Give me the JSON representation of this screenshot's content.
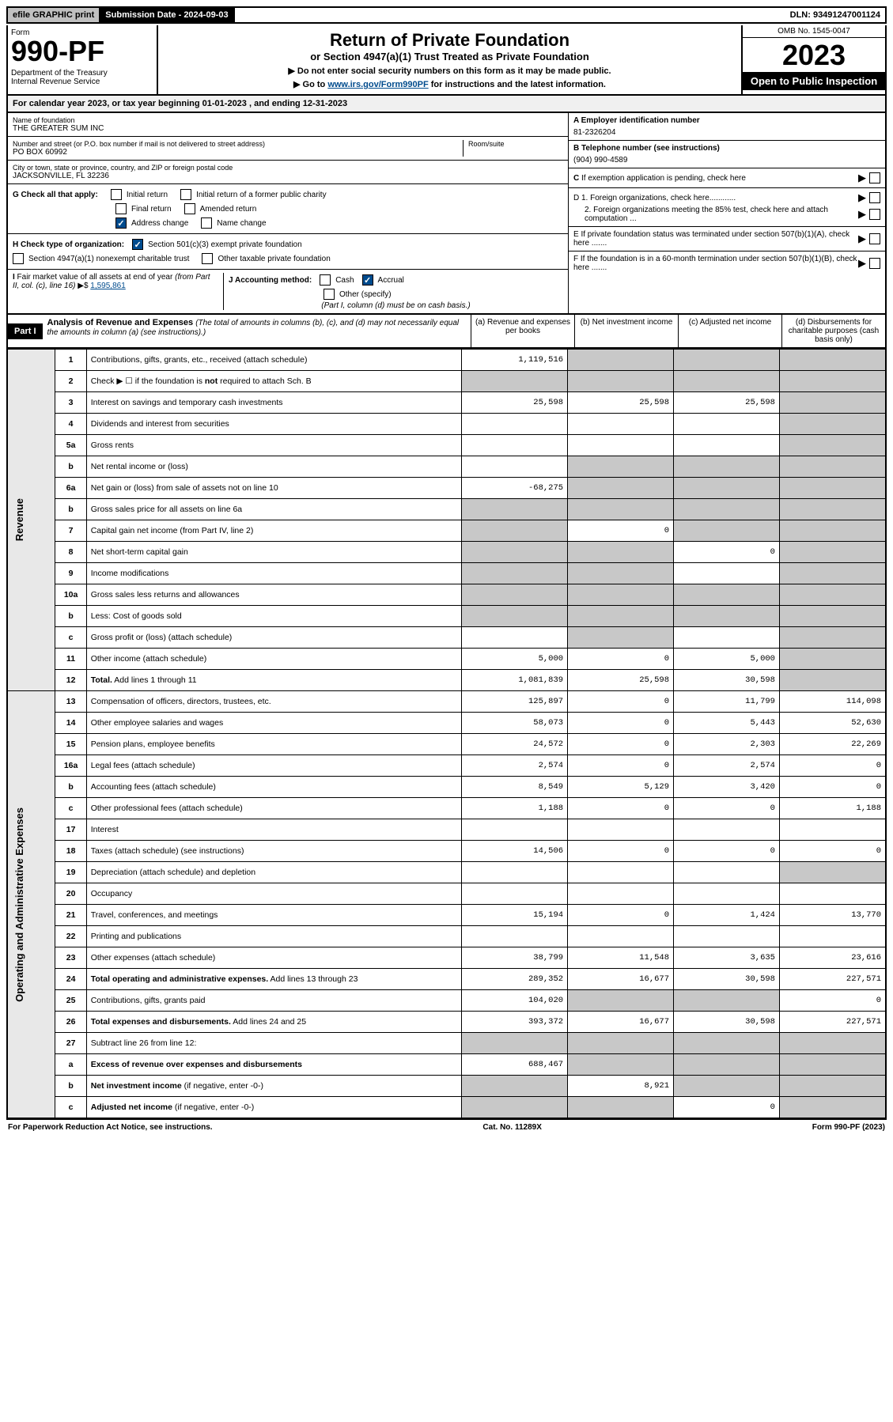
{
  "topbar": {
    "efile": "efile GRAPHIC print",
    "subdate_label": "Submission Date - 2024-09-03",
    "dln": "DLN: 93491247001124"
  },
  "header": {
    "form_label": "Form",
    "form_number": "990-PF",
    "dept": "Department of the Treasury\nInternal Revenue Service",
    "title": "Return of Private Foundation",
    "subtitle": "or Section 4947(a)(1) Trust Treated as Private Foundation",
    "note1": "▶ Do not enter social security numbers on this form as it may be made public.",
    "note2_pre": "▶ Go to ",
    "note2_link": "www.irs.gov/Form990PF",
    "note2_post": " for instructions and the latest information.",
    "omb": "OMB No. 1545-0047",
    "year": "2023",
    "inspect": "Open to Public Inspection"
  },
  "calyear": "For calendar year 2023, or tax year beginning 01-01-2023            , and ending 12-31-2023",
  "entity": {
    "name_lbl": "Name of foundation",
    "name": "THE GREATER SUM INC",
    "addr_lbl": "Number and street (or P.O. box number if mail is not delivered to street address)",
    "addr": "PO BOX 60992",
    "room_lbl": "Room/suite",
    "city_lbl": "City or town, state or province, country, and ZIP or foreign postal code",
    "city": "JACKSONVILLE, FL  32236",
    "a_lbl": "A Employer identification number",
    "a_val": "81-2326204",
    "b_lbl": "B Telephone number (see instructions)",
    "b_val": "(904) 990-4589",
    "c_lbl": "C If exemption application is pending, check here",
    "d1": "D 1. Foreign organizations, check here............",
    "d2": "2. Foreign organizations meeting the 85% test, check here and attach computation ...",
    "e_lbl": "E  If private foundation status was terminated under section 507(b)(1)(A), check here .......",
    "f_lbl": "F  If the foundation is in a 60-month termination under section 507(b)(1)(B), check here .......",
    "g_lbl": "G Check all that apply:",
    "g_opts": [
      "Initial return",
      "Initial return of a former public charity",
      "Final return",
      "Amended return",
      "Address change",
      "Name change"
    ],
    "h_lbl": "H Check type of organization:",
    "h_opts": [
      "Section 501(c)(3) exempt private foundation",
      "Section 4947(a)(1) nonexempt charitable trust",
      "Other taxable private foundation"
    ],
    "i_lbl": "I Fair market value of all assets at end of year (from Part II, col. (c), line 16) ▶$ ",
    "i_val": "1,595,861",
    "j_lbl": "J Accounting method:",
    "j_opts": [
      "Cash",
      "Accrual",
      "Other (specify)"
    ],
    "j_note": "(Part I, column (d) must be on cash basis.)"
  },
  "part1": {
    "label": "Part I",
    "title": "Analysis of Revenue and Expenses",
    "title_note": "(The total of amounts in columns (b), (c), and (d) may not necessarily equal the amounts in column (a) (see instructions).)",
    "col_a": "(a)  Revenue and expenses per books",
    "col_b": "(b)  Net investment income",
    "col_c": "(c)  Adjusted net income",
    "col_d": "(d)  Disbursements for charitable purposes (cash basis only)"
  },
  "sections": {
    "revenue": "Revenue",
    "opex": "Operating and Administrative Expenses"
  },
  "rows": [
    {
      "n": "1",
      "d": "Contributions, gifts, grants, etc., received (attach schedule)",
      "a": "1,119,516",
      "b": "",
      "c": "",
      "dd": "",
      "sb": true,
      "sc": true,
      "sd": true
    },
    {
      "n": "2",
      "d": "Check ▶ ☐ if the foundation is <b>not</b> required to attach Sch. B",
      "a": "",
      "b": "",
      "c": "",
      "dd": "",
      "sa": true,
      "sb": true,
      "sc": true,
      "sd": true
    },
    {
      "n": "3",
      "d": "Interest on savings and temporary cash investments",
      "a": "25,598",
      "b": "25,598",
      "c": "25,598",
      "dd": "",
      "sd": true
    },
    {
      "n": "4",
      "d": "Dividends and interest from securities",
      "a": "",
      "b": "",
      "c": "",
      "dd": "",
      "sd": true
    },
    {
      "n": "5a",
      "d": "Gross rents",
      "a": "",
      "b": "",
      "c": "",
      "dd": "",
      "sd": true
    },
    {
      "n": "b",
      "d": "Net rental income or (loss)",
      "a": "",
      "b": "",
      "c": "",
      "dd": "",
      "sa": false,
      "sb": true,
      "sc": true,
      "sd": true,
      "inset": true
    },
    {
      "n": "6a",
      "d": "Net gain or (loss) from sale of assets not on line 10",
      "a": "-68,275",
      "b": "",
      "c": "",
      "dd": "",
      "sb": true,
      "sc": true,
      "sd": true
    },
    {
      "n": "b",
      "d": "Gross sales price for all assets on line 6a",
      "a": "",
      "b": "",
      "c": "",
      "dd": "",
      "sa": true,
      "sb": true,
      "sc": true,
      "sd": true,
      "inset": true
    },
    {
      "n": "7",
      "d": "Capital gain net income (from Part IV, line 2)",
      "a": "",
      "b": "0",
      "c": "",
      "dd": "",
      "sa": true,
      "sc": true,
      "sd": true
    },
    {
      "n": "8",
      "d": "Net short-term capital gain",
      "a": "",
      "b": "",
      "c": "0",
      "dd": "",
      "sa": true,
      "sb": true,
      "sd": true
    },
    {
      "n": "9",
      "d": "Income modifications",
      "a": "",
      "b": "",
      "c": "",
      "dd": "",
      "sa": true,
      "sb": true,
      "sd": true
    },
    {
      "n": "10a",
      "d": "Gross sales less returns and allowances",
      "a": "",
      "b": "",
      "c": "",
      "dd": "",
      "sa": true,
      "sb": true,
      "sc": true,
      "sd": true,
      "inset": true
    },
    {
      "n": "b",
      "d": "Less: Cost of goods sold",
      "a": "",
      "b": "",
      "c": "",
      "dd": "",
      "sa": true,
      "sb": true,
      "sc": true,
      "sd": true,
      "inset": true
    },
    {
      "n": "c",
      "d": "Gross profit or (loss) (attach schedule)",
      "a": "",
      "b": "",
      "c": "",
      "dd": "",
      "sb": true,
      "sd": true
    },
    {
      "n": "11",
      "d": "Other income (attach schedule)",
      "a": "5,000",
      "b": "0",
      "c": "5,000",
      "dd": "",
      "sd": true
    },
    {
      "n": "12",
      "d": "<b>Total.</b> Add lines 1 through 11",
      "a": "1,081,839",
      "b": "25,598",
      "c": "30,598",
      "dd": "",
      "sd": true
    },
    {
      "n": "13",
      "d": "Compensation of officers, directors, trustees, etc.",
      "a": "125,897",
      "b": "0",
      "c": "11,799",
      "dd": "114,098"
    },
    {
      "n": "14",
      "d": "Other employee salaries and wages",
      "a": "58,073",
      "b": "0",
      "c": "5,443",
      "dd": "52,630"
    },
    {
      "n": "15",
      "d": "Pension plans, employee benefits",
      "a": "24,572",
      "b": "0",
      "c": "2,303",
      "dd": "22,269"
    },
    {
      "n": "16a",
      "d": "Legal fees (attach schedule)",
      "a": "2,574",
      "b": "0",
      "c": "2,574",
      "dd": "0"
    },
    {
      "n": "b",
      "d": "Accounting fees (attach schedule)",
      "a": "8,549",
      "b": "5,129",
      "c": "3,420",
      "dd": "0"
    },
    {
      "n": "c",
      "d": "Other professional fees (attach schedule)",
      "a": "1,188",
      "b": "0",
      "c": "0",
      "dd": "1,188"
    },
    {
      "n": "17",
      "d": "Interest",
      "a": "",
      "b": "",
      "c": "",
      "dd": ""
    },
    {
      "n": "18",
      "d": "Taxes (attach schedule) (see instructions)",
      "a": "14,506",
      "b": "0",
      "c": "0",
      "dd": "0"
    },
    {
      "n": "19",
      "d": "Depreciation (attach schedule) and depletion",
      "a": "",
      "b": "",
      "c": "",
      "dd": "",
      "sd": true
    },
    {
      "n": "20",
      "d": "Occupancy",
      "a": "",
      "b": "",
      "c": "",
      "dd": ""
    },
    {
      "n": "21",
      "d": "Travel, conferences, and meetings",
      "a": "15,194",
      "b": "0",
      "c": "1,424",
      "dd": "13,770"
    },
    {
      "n": "22",
      "d": "Printing and publications",
      "a": "",
      "b": "",
      "c": "",
      "dd": ""
    },
    {
      "n": "23",
      "d": "Other expenses (attach schedule)",
      "a": "38,799",
      "b": "11,548",
      "c": "3,635",
      "dd": "23,616"
    },
    {
      "n": "24",
      "d": "<b>Total operating and administrative expenses.</b> Add lines 13 through 23",
      "a": "289,352",
      "b": "16,677",
      "c": "30,598",
      "dd": "227,571"
    },
    {
      "n": "25",
      "d": "Contributions, gifts, grants paid",
      "a": "104,020",
      "b": "",
      "c": "",
      "dd": "0",
      "sb": true,
      "sc": true
    },
    {
      "n": "26",
      "d": "<b>Total expenses and disbursements.</b> Add lines 24 and 25",
      "a": "393,372",
      "b": "16,677",
      "c": "30,598",
      "dd": "227,571"
    },
    {
      "n": "27",
      "d": "Subtract line 26 from line 12:",
      "a": "",
      "b": "",
      "c": "",
      "dd": "",
      "sa": true,
      "sb": true,
      "sc": true,
      "sd": true
    },
    {
      "n": "a",
      "d": "<b>Excess of revenue over expenses and disbursements</b>",
      "a": "688,467",
      "b": "",
      "c": "",
      "dd": "",
      "sb": true,
      "sc": true,
      "sd": true
    },
    {
      "n": "b",
      "d": "<b>Net investment income</b> (if negative, enter -0-)",
      "a": "",
      "b": "8,921",
      "c": "",
      "dd": "",
      "sa": true,
      "sc": true,
      "sd": true
    },
    {
      "n": "c",
      "d": "<b>Adjusted net income</b> (if negative, enter -0-)",
      "a": "",
      "b": "",
      "c": "0",
      "dd": "",
      "sa": true,
      "sb": true,
      "sd": true
    }
  ],
  "footer": {
    "left": "For Paperwork Reduction Act Notice, see instructions.",
    "mid": "Cat. No. 11289X",
    "right": "Form 990-PF (2023)"
  }
}
